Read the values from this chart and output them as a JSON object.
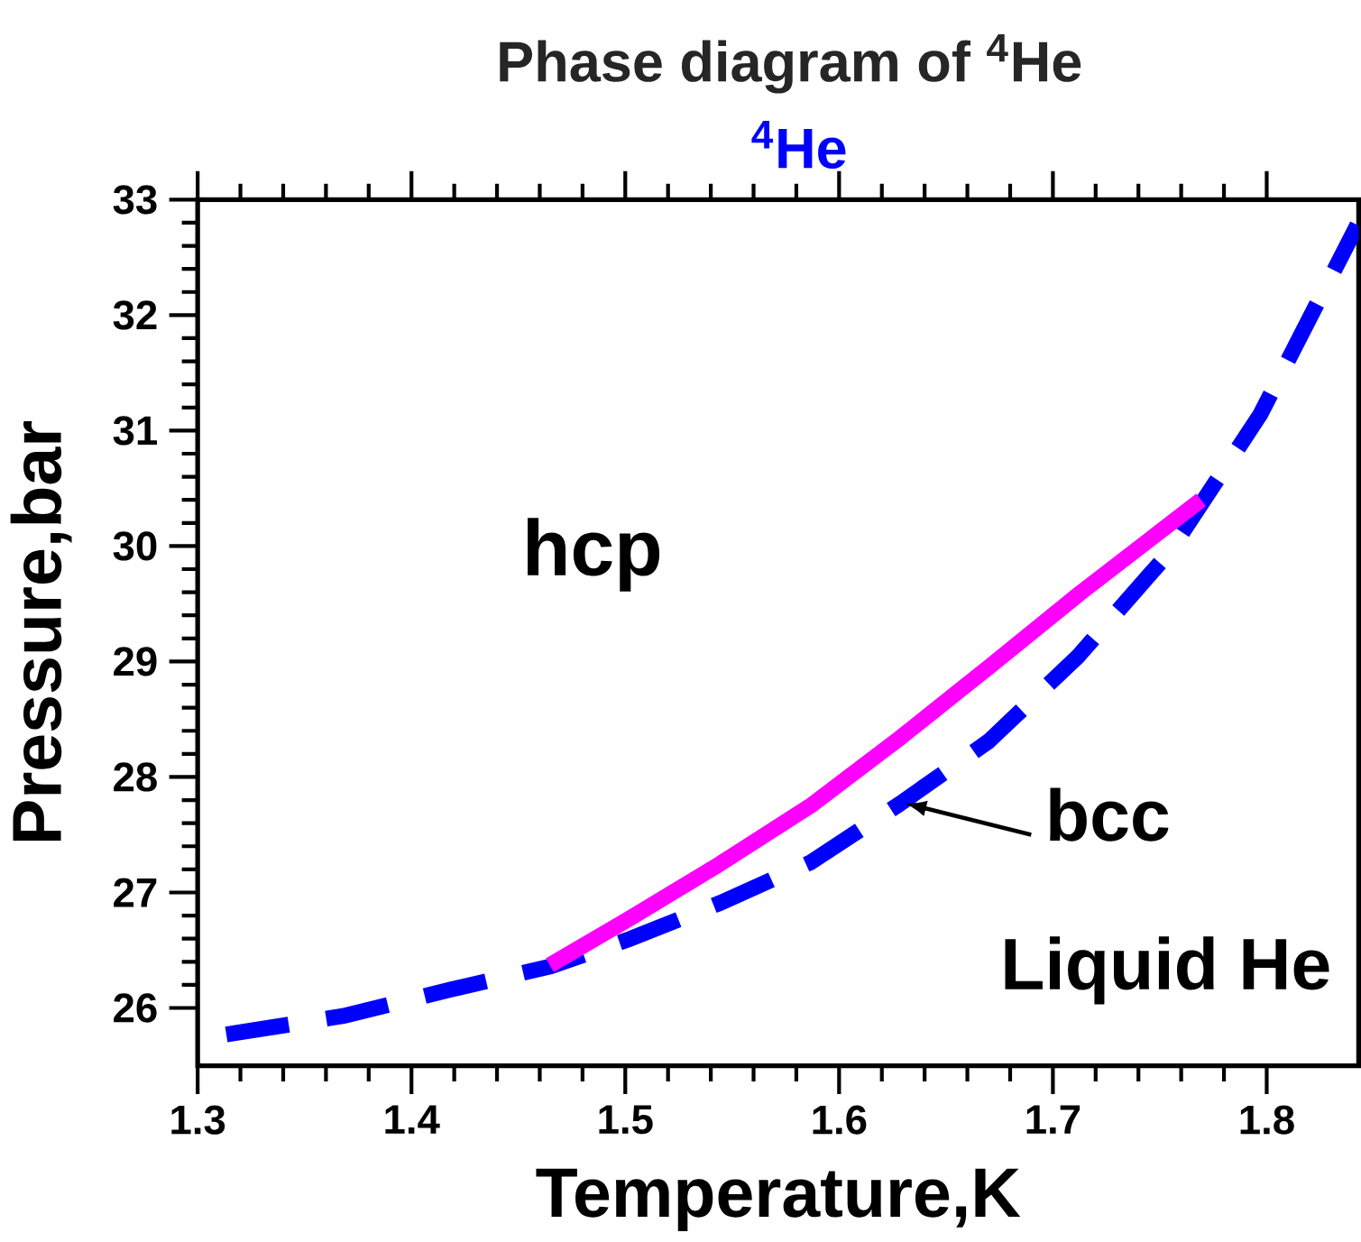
{
  "chart_data": {
    "type": "line",
    "title": "Phase diagram of $^{4}$He",
    "subtitle": "$^{4}$He",
    "xlabel": "Temperature,K",
    "ylabel": "Pressure,bar",
    "xlim": [
      1.3,
      1.843
    ],
    "ylim": [
      25.5,
      33
    ],
    "xticks": [
      1.3,
      1.4,
      1.5,
      1.6,
      1.7,
      1.8
    ],
    "yticks": [
      26,
      27,
      28,
      29,
      30,
      31,
      32,
      33
    ],
    "marker": "none",
    "series": [
      {
        "color": "#0000ff",
        "line_style": "dashed",
        "x": [
          1.3134,
          1.368,
          1.4185,
          1.465,
          1.5025,
          1.5445,
          1.5866,
          1.6286,
          1.67,
          1.712,
          1.7546,
          1.797,
          1.8424
        ],
        "values": [
          25.77,
          25.93,
          26.16,
          26.36,
          26.6,
          26.91,
          27.26,
          27.77,
          28.31,
          29.05,
          29.95,
          31.14,
          32.78
        ]
      },
      {
        "color": "#ff00ff",
        "line_style": "solid",
        "x": [
          1.4647,
          1.5025,
          1.5445,
          1.5866,
          1.6286,
          1.6706,
          1.7126,
          1.7693
        ],
        "values": [
          26.37,
          26.78,
          27.25,
          27.75,
          28.34,
          28.96,
          29.59,
          30.4
        ]
      }
    ],
    "annotations": [
      "hcp",
      {
        "text": "bcc",
        "x": 1.63,
        "y": 27.79
      },
      "Liquid He"
    ]
  }
}
